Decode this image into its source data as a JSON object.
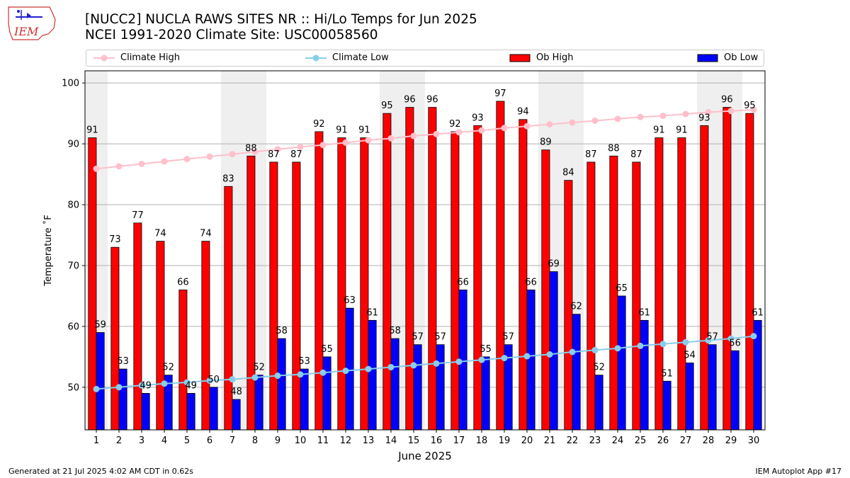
{
  "title_line1": "[NUCC2] NUCLA RAWS SITES NR :: Hi/Lo Temps for Jun 2025",
  "title_line2": "NCEI 1991-2020 Climate Site: USC00058560",
  "logo_text": "IEM",
  "footer_left": "Generated at 21 Jul 2025 4:02 AM CDT in 0.62s",
  "footer_right": "IEM Autoplot App #17",
  "legend": {
    "climate_high": "Climate High",
    "climate_low": "Climate Low",
    "ob_high": "Ob High",
    "ob_low": "Ob Low"
  },
  "colors": {
    "ob_high": "#ff0000",
    "ob_low": "#0000ff",
    "climate_high": "#ffc0cb",
    "climate_low": "#87ceeb",
    "weekend_shade": "#efefef"
  },
  "chart_data": {
    "type": "bar",
    "xlabel": "June 2025",
    "ylabel": "Temperature ˚F",
    "ylim": [
      43,
      102
    ],
    "yticks": [
      50,
      60,
      70,
      80,
      90,
      100
    ],
    "grid": true,
    "legend_placement": "top",
    "categories": [
      "1",
      "2",
      "3",
      "4",
      "5",
      "6",
      "7",
      "8",
      "9",
      "10",
      "11",
      "12",
      "13",
      "14",
      "15",
      "16",
      "17",
      "18",
      "19",
      "20",
      "21",
      "22",
      "23",
      "24",
      "25",
      "26",
      "27",
      "28",
      "29",
      "30"
    ],
    "shaded_days": [
      1,
      7,
      8,
      14,
      15,
      21,
      22,
      28,
      29
    ],
    "series": [
      {
        "name": "Ob High",
        "kind": "bar",
        "values": [
          91,
          73,
          77,
          74,
          66,
          74,
          83,
          88,
          87,
          87,
          92,
          91,
          91,
          95,
          96,
          96,
          92,
          93,
          97,
          94,
          89,
          84,
          87,
          88,
          87,
          91,
          91,
          93,
          96,
          95
        ]
      },
      {
        "name": "Ob Low",
        "kind": "bar",
        "values": [
          59,
          53,
          49,
          52,
          49,
          50,
          48,
          52,
          58,
          53,
          55,
          63,
          61,
          58,
          57,
          57,
          66,
          55,
          57,
          66,
          69,
          62,
          52,
          65,
          61,
          51,
          54,
          57,
          56,
          61
        ]
      },
      {
        "name": "Climate High",
        "kind": "line",
        "values": [
          85.9,
          86.3,
          86.7,
          87.1,
          87.5,
          87.9,
          88.3,
          88.7,
          89.1,
          89.5,
          89.8,
          90.2,
          90.6,
          90.9,
          91.3,
          91.6,
          91.9,
          92.2,
          92.6,
          92.9,
          93.2,
          93.5,
          93.8,
          94.1,
          94.4,
          94.6,
          94.9,
          95.2,
          95.4,
          95.6
        ]
      },
      {
        "name": "Climate Low",
        "kind": "line",
        "values": [
          49.7,
          50.0,
          50.3,
          50.6,
          50.8,
          51.1,
          51.3,
          51.6,
          51.9,
          52.1,
          52.4,
          52.7,
          53.0,
          53.3,
          53.6,
          53.9,
          54.2,
          54.5,
          54.8,
          55.1,
          55.4,
          55.8,
          56.1,
          56.4,
          56.8,
          57.1,
          57.4,
          57.7,
          58.0,
          58.4
        ]
      }
    ]
  }
}
